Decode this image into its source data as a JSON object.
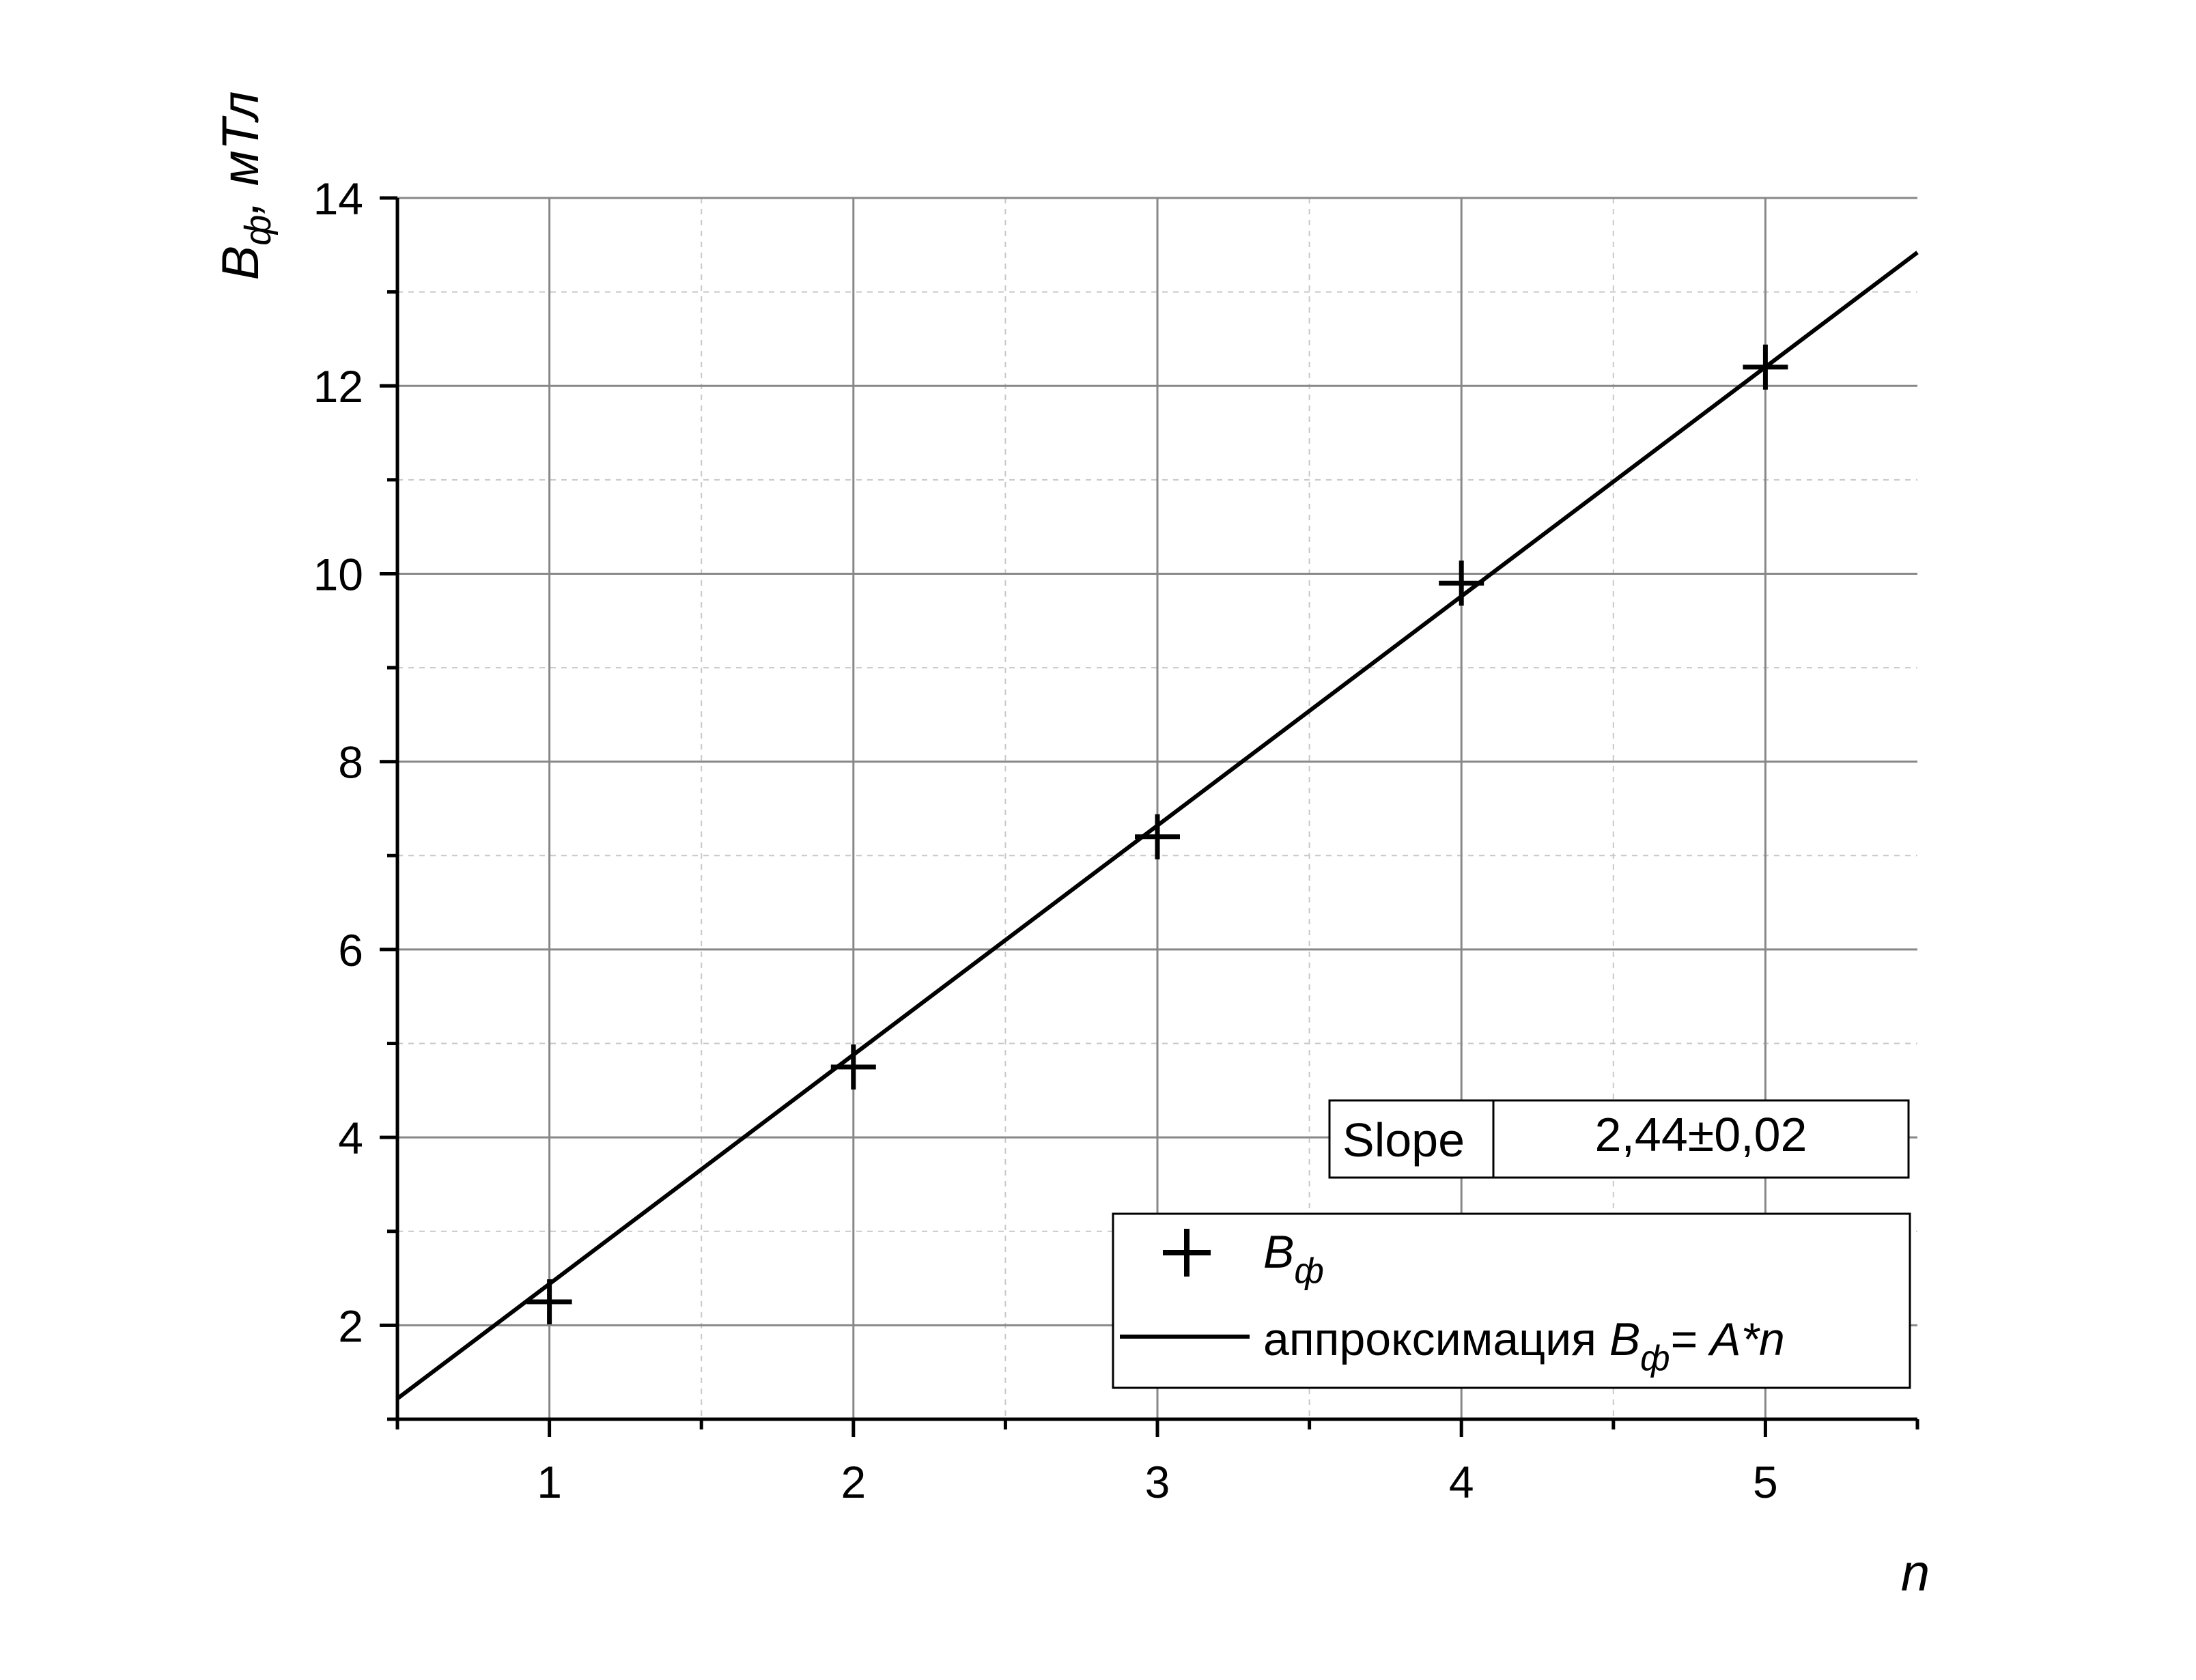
{
  "chart_data": {
    "type": "scatter",
    "xlabel": "n",
    "ylabel": {
      "symbol": "B",
      "subscript": "ф",
      "unit": ", мТл"
    },
    "xlim": [
      0.5,
      5.5
    ],
    "ylim": [
      1,
      14
    ],
    "x_ticks": [
      1,
      2,
      3,
      4,
      5
    ],
    "x_tick_labels": [
      "1",
      "2",
      "3",
      "4",
      "5"
    ],
    "x_minor_ticks": [
      0.5,
      1.5,
      2.5,
      3.5,
      4.5,
      5.5
    ],
    "y_ticks": [
      2,
      4,
      6,
      8,
      10,
      12,
      14
    ],
    "y_tick_labels": [
      "2",
      "4",
      "6",
      "8",
      "10",
      "12",
      "14"
    ],
    "y_minor_ticks": [
      1,
      3,
      5,
      7,
      9,
      11,
      13
    ],
    "grid": true,
    "series": [
      {
        "name": {
          "symbol": "B",
          "subscript": "ф"
        },
        "marker": "plus",
        "x": [
          1,
          2,
          3,
          4,
          5
        ],
        "y": [
          2.25,
          4.75,
          7.2,
          9.9,
          12.2
        ]
      }
    ],
    "fit": {
      "name": {
        "prefix": "аппроксимация ",
        "symbol": "B",
        "subscript": "ф",
        "suffix": "= A*n"
      },
      "type": "linear-through-origin",
      "slope": 2.44,
      "x_range": [
        0.5,
        5.5
      ]
    },
    "stats_table": {
      "label": "Slope",
      "value": "2,44±0,02"
    },
    "legend_position": "bottom-right",
    "colors": {
      "axis": "#000000",
      "major_grid": "#888888",
      "minor_grid": "#c8c8c8",
      "data": "#000000"
    }
  }
}
